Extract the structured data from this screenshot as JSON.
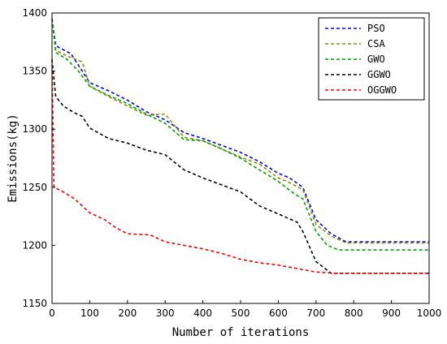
{
  "chart_data": {
    "type": "line",
    "title": "",
    "xlabel": "Number of iterations",
    "ylabel": "Emissions(kg)",
    "xlim": [
      0,
      1000
    ],
    "ylim": [
      1150,
      1400
    ],
    "xticks": [
      0,
      100,
      200,
      300,
      400,
      500,
      600,
      700,
      800,
      900,
      1000
    ],
    "yticks": [
      1150,
      1200,
      1250,
      1300,
      1350,
      1400
    ],
    "grid": false,
    "legend_position": "top-right",
    "series": [
      {
        "name": "PSO",
        "color": "#0000ff",
        "x": [
          0,
          10,
          20,
          50,
          100,
          150,
          200,
          250,
          300,
          350,
          400,
          450,
          500,
          550,
          600,
          630,
          665,
          700,
          740,
          780,
          800,
          850,
          900,
          950,
          1000
        ],
        "y": [
          1395,
          1372,
          1370,
          1365,
          1340,
          1333,
          1325,
          1315,
          1308,
          1297,
          1292,
          1286,
          1280,
          1272,
          1262,
          1258,
          1250,
          1222,
          1210,
          1203,
          1203,
          1203,
          1203,
          1203,
          1203
        ]
      },
      {
        "name": "CSA",
        "color": "#8c8c00",
        "x": [
          0,
          10,
          40,
          80,
          100,
          150,
          200,
          250,
          300,
          350,
          400,
          450,
          500,
          550,
          600,
          630,
          665,
          700,
          740,
          780,
          800,
          850,
          900,
          950,
          1000
        ],
        "y": [
          1395,
          1368,
          1363,
          1358,
          1337,
          1328,
          1320,
          1312,
          1313,
          1293,
          1290,
          1283,
          1276,
          1270,
          1258,
          1254,
          1248,
          1218,
          1208,
          1202,
          1202,
          1202,
          1202,
          1202,
          1202
        ]
      },
      {
        "name": "GWO",
        "color": "#00a000",
        "x": [
          0,
          10,
          40,
          70,
          100,
          150,
          200,
          250,
          300,
          350,
          400,
          450,
          500,
          550,
          600,
          640,
          665,
          700,
          730,
          760,
          800,
          850,
          900,
          950,
          1000
        ],
        "y": [
          1395,
          1366,
          1360,
          1350,
          1337,
          1329,
          1322,
          1313,
          1305,
          1291,
          1290,
          1283,
          1275,
          1265,
          1255,
          1245,
          1240,
          1212,
          1200,
          1196,
          1196,
          1196,
          1196,
          1196,
          1196
        ]
      },
      {
        "name": "GGWO",
        "color": "#000000",
        "x": [
          0,
          10,
          30,
          60,
          80,
          100,
          150,
          200,
          250,
          300,
          350,
          400,
          450,
          500,
          550,
          600,
          650,
          665,
          700,
          740,
          760,
          800,
          900,
          1000
        ],
        "y": [
          1360,
          1328,
          1320,
          1314,
          1311,
          1301,
          1292,
          1288,
          1282,
          1278,
          1265,
          1258,
          1252,
          1246,
          1234,
          1227,
          1220,
          1212,
          1186,
          1176,
          1176,
          1176,
          1176,
          1176
        ]
      },
      {
        "name": "OGGWO",
        "color": "#ff0000",
        "x": [
          0,
          5,
          30,
          60,
          100,
          140,
          170,
          200,
          260,
          300,
          350,
          400,
          450,
          500,
          550,
          600,
          650,
          700,
          750,
          800,
          900,
          1000
        ],
        "y": [
          1360,
          1250,
          1246,
          1240,
          1228,
          1222,
          1215,
          1210,
          1209,
          1203,
          1200,
          1197,
          1193,
          1188,
          1185,
          1183,
          1180,
          1177,
          1176,
          1176,
          1176,
          1176
        ]
      }
    ]
  }
}
